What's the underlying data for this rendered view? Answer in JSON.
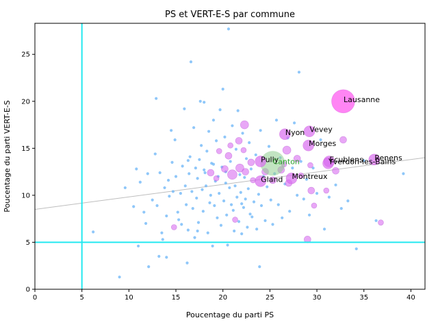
{
  "chart_data": {
    "type": "scatter",
    "title": "PS et VERT-E-S par commune",
    "xlabel": "Poucentage du parti PS",
    "ylabel": "Poucentage du parti VERT-E-S",
    "xlim": [
      0,
      41.5
    ],
    "ylim": [
      0,
      28.3
    ],
    "xticks": [
      0,
      5,
      10,
      15,
      20,
      25,
      30,
      35,
      40
    ],
    "yticks": [
      0,
      5,
      10,
      15,
      20,
      25
    ],
    "grid": false,
    "reference_lines": {
      "x": 5,
      "y": 5,
      "color": "#22e8f0"
    },
    "trend_line": {
      "x": [
        0,
        41.5
      ],
      "y": [
        8.5,
        14.0
      ],
      "color": "#bdbdbd"
    },
    "canton_marker": {
      "label": "Canton",
      "x": 25.3,
      "y": 13.4,
      "color": "#8fce8f",
      "label_color": "#2ca02c"
    },
    "colors": {
      "small": "#6ab4f7",
      "large": "#d96cf0",
      "lausanne": "#ff5cf0"
    },
    "labeled_points": [
      {
        "name": "Lausanne",
        "x": 32.8,
        "y": 20.0
      },
      {
        "name": "Vevey",
        "x": 29.2,
        "y": 16.8
      },
      {
        "name": "Nyon",
        "x": 26.6,
        "y": 16.5
      },
      {
        "name": "Morges",
        "x": 29.1,
        "y": 15.3
      },
      {
        "name": "Renens",
        "x": 36.1,
        "y": 13.8
      },
      {
        "name": "Ecublens",
        "x": 31.3,
        "y": 13.6
      },
      {
        "name": "Yverdon-les-Bains",
        "x": 31.2,
        "y": 13.4
      },
      {
        "name": "Pully",
        "x": 24.0,
        "y": 13.6
      },
      {
        "name": "Gland",
        "x": 24.0,
        "y": 11.5
      },
      {
        "name": "Montreux",
        "x": 27.3,
        "y": 11.8
      }
    ],
    "large_points": [
      {
        "x": 22.3,
        "y": 17.5,
        "s": 6
      },
      {
        "x": 21.7,
        "y": 15.8,
        "s": 5
      },
      {
        "x": 26.8,
        "y": 14.8,
        "s": 6
      },
      {
        "x": 27.9,
        "y": 13.9,
        "s": 5
      },
      {
        "x": 22.2,
        "y": 14.8,
        "s": 4
      },
      {
        "x": 20.6,
        "y": 14.2,
        "s": 5
      },
      {
        "x": 21.8,
        "y": 12.9,
        "s": 6
      },
      {
        "x": 22.4,
        "y": 12.5,
        "s": 5
      },
      {
        "x": 21.0,
        "y": 12.2,
        "s": 7
      },
      {
        "x": 18.7,
        "y": 12.4,
        "s": 5
      },
      {
        "x": 23.0,
        "y": 13.5,
        "s": 5
      },
      {
        "x": 26.2,
        "y": 12.7,
        "s": 5
      },
      {
        "x": 29.3,
        "y": 13.2,
        "s": 4
      },
      {
        "x": 32.8,
        "y": 15.9,
        "s": 5
      },
      {
        "x": 32.0,
        "y": 12.6,
        "s": 5
      },
      {
        "x": 29.4,
        "y": 10.5,
        "s": 5
      },
      {
        "x": 29.7,
        "y": 8.9,
        "s": 4
      },
      {
        "x": 31.0,
        "y": 10.5,
        "s": 4
      },
      {
        "x": 29.0,
        "y": 5.3,
        "s": 5
      },
      {
        "x": 36.8,
        "y": 7.1,
        "s": 4
      },
      {
        "x": 24.5,
        "y": 12.5,
        "s": 5
      },
      {
        "x": 20.2,
        "y": 12.8,
        "s": 5
      },
      {
        "x": 23.2,
        "y": 11.6,
        "s": 4
      },
      {
        "x": 25.3,
        "y": 11.6,
        "s": 5
      },
      {
        "x": 19.3,
        "y": 11.8,
        "s": 4
      },
      {
        "x": 28.3,
        "y": 12.1,
        "s": 4
      },
      {
        "x": 21.3,
        "y": 7.4,
        "s": 4
      },
      {
        "x": 14.8,
        "y": 6.6,
        "s": 4
      },
      {
        "x": 26.5,
        "y": 13.3,
        "s": 4
      },
      {
        "x": 27.0,
        "y": 11.3,
        "s": 5
      },
      {
        "x": 20.8,
        "y": 15.3,
        "s": 4
      },
      {
        "x": 19.6,
        "y": 14.7,
        "s": 4
      }
    ],
    "small_points": [
      [
        9.0,
        1.3
      ],
      [
        9.6,
        10.8
      ],
      [
        10.5,
        8.8
      ],
      [
        10.8,
        12.8
      ],
      [
        11.0,
        4.6
      ],
      [
        11.2,
        11.4
      ],
      [
        11.6,
        8.2
      ],
      [
        11.8,
        7.0
      ],
      [
        12.0,
        12.3
      ],
      [
        12.1,
        2.4
      ],
      [
        12.5,
        9.5
      ],
      [
        12.8,
        14.4
      ],
      [
        12.9,
        20.3
      ],
      [
        13.0,
        8.9
      ],
      [
        13.2,
        3.5
      ],
      [
        13.3,
        12.4
      ],
      [
        13.5,
        6.0
      ],
      [
        13.6,
        5.3
      ],
      [
        13.8,
        10.8
      ],
      [
        14.0,
        3.4
      ],
      [
        14.0,
        7.8
      ],
      [
        14.2,
        11.6
      ],
      [
        14.3,
        9.9
      ],
      [
        14.5,
        16.9
      ],
      [
        14.6,
        13.5
      ],
      [
        14.7,
        10.4
      ],
      [
        14.9,
        15.9
      ],
      [
        15.0,
        12.0
      ],
      [
        15.2,
        8.2
      ],
      [
        15.3,
        7.4
      ],
      [
        15.5,
        10.2
      ],
      [
        15.6,
        6.9
      ],
      [
        15.7,
        13.1
      ],
      [
        15.9,
        19.2
      ],
      [
        16.0,
        11.0
      ],
      [
        16.1,
        9.0
      ],
      [
        16.2,
        2.8
      ],
      [
        16.3,
        6.3
      ],
      [
        16.4,
        12.3
      ],
      [
        16.5,
        14.1
      ],
      [
        16.6,
        24.2
      ],
      [
        16.7,
        10.4
      ],
      [
        16.8,
        8.6
      ],
      [
        16.9,
        17.2
      ],
      [
        17.0,
        5.5
      ],
      [
        17.1,
        12.9
      ],
      [
        17.2,
        9.7
      ],
      [
        17.3,
        11.8
      ],
      [
        17.4,
        7.1
      ],
      [
        17.5,
        13.8
      ],
      [
        17.6,
        20.0
      ],
      [
        17.7,
        15.3
      ],
      [
        17.8,
        10.6
      ],
      [
        17.9,
        8.3
      ],
      [
        18.0,
        19.9
      ],
      [
        18.1,
        12.4
      ],
      [
        18.2,
        11.0
      ],
      [
        18.3,
        14.7
      ],
      [
        18.4,
        6.0
      ],
      [
        18.5,
        16.8
      ],
      [
        18.6,
        9.2
      ],
      [
        18.7,
        10.0
      ],
      [
        18.8,
        13.4
      ],
      [
        18.9,
        4.6
      ],
      [
        19.0,
        18.0
      ],
      [
        19.1,
        8.9
      ],
      [
        19.2,
        11.5
      ],
      [
        19.3,
        15.8
      ],
      [
        19.4,
        7.6
      ],
      [
        19.5,
        12.0
      ],
      [
        19.6,
        10.2
      ],
      [
        19.7,
        19.1
      ],
      [
        19.8,
        6.8
      ],
      [
        19.9,
        13.0
      ],
      [
        20.0,
        21.3
      ],
      [
        20.1,
        9.4
      ],
      [
        20.2,
        16.2
      ],
      [
        20.3,
        11.3
      ],
      [
        20.4,
        7.9
      ],
      [
        20.5,
        4.7
      ],
      [
        20.6,
        27.7
      ],
      [
        20.7,
        10.8
      ],
      [
        20.8,
        13.6
      ],
      [
        20.9,
        9.0
      ],
      [
        21.0,
        17.4
      ],
      [
        21.1,
        8.4
      ],
      [
        21.2,
        6.2
      ],
      [
        21.3,
        11.0
      ],
      [
        21.4,
        14.9
      ],
      [
        21.5,
        9.8
      ],
      [
        21.6,
        19.0
      ],
      [
        21.7,
        7.2
      ],
      [
        21.8,
        12.2
      ],
      [
        21.9,
        10.3
      ],
      [
        22.0,
        5.9
      ],
      [
        22.1,
        16.6
      ],
      [
        22.2,
        8.7
      ],
      [
        22.3,
        11.9
      ],
      [
        22.4,
        9.6
      ],
      [
        22.5,
        13.9
      ],
      [
        22.6,
        6.6
      ],
      [
        22.7,
        10.7
      ],
      [
        22.8,
        15.6
      ],
      [
        22.9,
        8.0
      ],
      [
        23.0,
        12.8
      ],
      [
        23.1,
        7.7
      ],
      [
        23.3,
        9.3
      ],
      [
        23.5,
        14.3
      ],
      [
        23.6,
        6.4
      ],
      [
        23.8,
        10.1
      ],
      [
        23.9,
        2.4
      ],
      [
        24.0,
        16.9
      ],
      [
        24.1,
        8.9
      ],
      [
        24.3,
        12.0
      ],
      [
        24.5,
        7.3
      ],
      [
        24.7,
        10.9
      ],
      [
        24.9,
        15.2
      ],
      [
        25.1,
        9.5
      ],
      [
        25.3,
        6.9
      ],
      [
        25.5,
        12.3
      ],
      [
        25.7,
        18.0
      ],
      [
        25.9,
        9.0
      ],
      [
        26.1,
        14.0
      ],
      [
        26.3,
        7.6
      ],
      [
        26.6,
        11.2
      ],
      [
        26.9,
        16.1
      ],
      [
        27.1,
        8.3
      ],
      [
        27.4,
        12.9
      ],
      [
        27.6,
        17.7
      ],
      [
        27.9,
        10.0
      ],
      [
        28.1,
        23.1
      ],
      [
        28.3,
        13.6
      ],
      [
        28.6,
        9.6
      ],
      [
        28.9,
        11.7
      ],
      [
        29.2,
        7.9
      ],
      [
        29.6,
        12.9
      ],
      [
        30.0,
        10.2
      ],
      [
        30.4,
        15.9
      ],
      [
        30.8,
        6.4
      ],
      [
        31.3,
        9.8
      ],
      [
        32.0,
        11.1
      ],
      [
        32.6,
        8.6
      ],
      [
        33.3,
        9.4
      ],
      [
        34.2,
        4.3
      ],
      [
        35.0,
        13.7
      ],
      [
        36.3,
        7.3
      ],
      [
        39.2,
        12.3
      ],
      [
        6.2,
        6.1
      ],
      [
        16.3,
        13.7
      ],
      [
        17.3,
        6.2
      ],
      [
        18.0,
        12.7
      ],
      [
        19.0,
        13.3
      ],
      [
        20.3,
        12.5
      ],
      [
        22.0,
        9.1
      ]
    ]
  }
}
